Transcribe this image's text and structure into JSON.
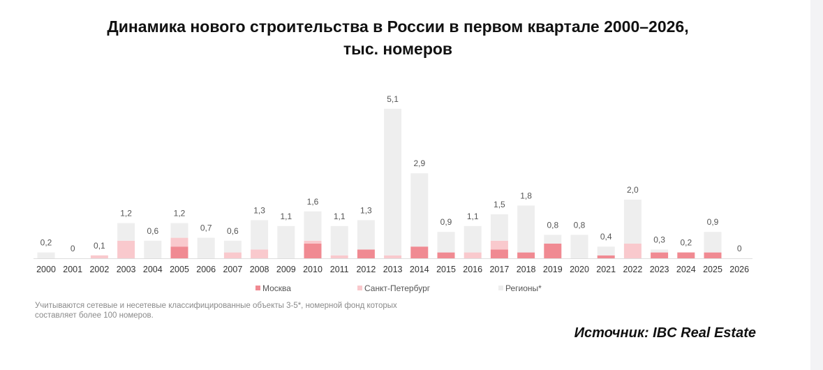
{
  "title_line1": "Динамика нового строительства в России в первом квартале 2000–2026,",
  "title_line2": "тыс. номеров",
  "footnote": "Учитываются сетевые и несетевые классифицированные объекты 3-5*, номерной фонд которых составляет более 100 номеров.",
  "source": "Источник: IBC Real Estate",
  "colors": {
    "moscow": "#f08a92",
    "spb": "#f9c9cd",
    "regions": "#eeeeee",
    "axis": "#dddddd"
  },
  "chart_data": {
    "type": "bar",
    "stacked": true,
    "title": "Динамика нового строительства в России в первом квартале 2000–2026, тыс. номеров",
    "categories": [
      "2000",
      "2001",
      "2002",
      "2003",
      "2004",
      "2005",
      "2006",
      "2007",
      "2008",
      "2009",
      "2010",
      "2011",
      "2012",
      "2013",
      "2014",
      "2015",
      "2016",
      "2017",
      "2018",
      "2019",
      "2020",
      "2021",
      "2022",
      "2023",
      "2024",
      "2025",
      "2026"
    ],
    "totals": [
      "0,2",
      "0",
      "0,1",
      "1,2",
      "0,6",
      "1,2",
      "0,7",
      "0,6",
      "1,3",
      "1,1",
      "1,6",
      "1,1",
      "1,3",
      "5,1",
      "2,9",
      "0,9",
      "1,1",
      "1,5",
      "1,8",
      "0,8",
      "0,8",
      "0,4",
      "2,0",
      "0,3",
      "0,2",
      "0,9",
      "0"
    ],
    "series": [
      {
        "name": "Москва",
        "values": [
          0,
          0,
          0,
          0,
          0,
          0.4,
          0,
          0,
          0,
          0,
          0.5,
          0,
          0.3,
          0,
          0.4,
          0.2,
          0,
          0.3,
          0.2,
          0.5,
          0,
          0.1,
          0,
          0.2,
          0.2,
          0.2,
          0
        ]
      },
      {
        "name": "Санкт-Петербург",
        "values": [
          0,
          0,
          0.1,
          0.6,
          0,
          0.3,
          0,
          0.2,
          0.3,
          0,
          0.1,
          0.1,
          0,
          0.1,
          0,
          0,
          0.2,
          0.3,
          0,
          0,
          0,
          0,
          0.5,
          0,
          0,
          0,
          0
        ]
      },
      {
        "name": "Регионы*",
        "values": [
          0.2,
          0,
          0,
          0.6,
          0.6,
          0.5,
          0.7,
          0.4,
          1.0,
          1.1,
          1.0,
          1.0,
          1.0,
          5.0,
          2.5,
          0.7,
          0.9,
          0.9,
          1.6,
          0.3,
          0.8,
          0.3,
          1.5,
          0.1,
          0,
          0.7,
          0
        ]
      }
    ],
    "legend_position": "bottom",
    "grid": false
  }
}
